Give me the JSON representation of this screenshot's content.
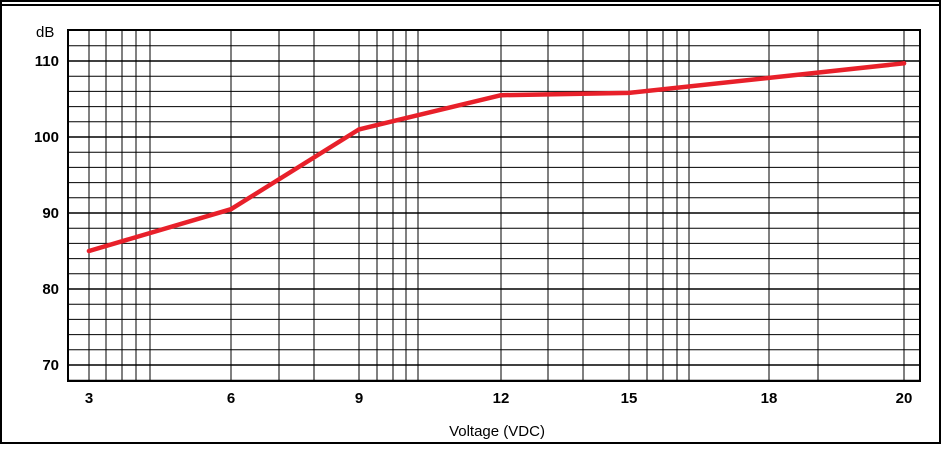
{
  "chart_data": {
    "type": "line",
    "title": "",
    "xlabel": "Voltage (VDC)",
    "ylabel": "dB",
    "x_ticks": [
      "3",
      "6",
      "9",
      "12",
      "15",
      "18",
      "20"
    ],
    "y_ticks": [
      "70",
      "80",
      "90",
      "100",
      "110"
    ],
    "xlim": [
      3,
      20
    ],
    "ylim": [
      68,
      113
    ],
    "grid": true,
    "legend": "none",
    "series": [
      {
        "color": "#e8202a",
        "x": [
          3,
          6,
          9,
          12,
          15,
          20
        ],
        "y": [
          85,
          90.5,
          101,
          105.5,
          105.8,
          109.7
        ]
      }
    ]
  }
}
